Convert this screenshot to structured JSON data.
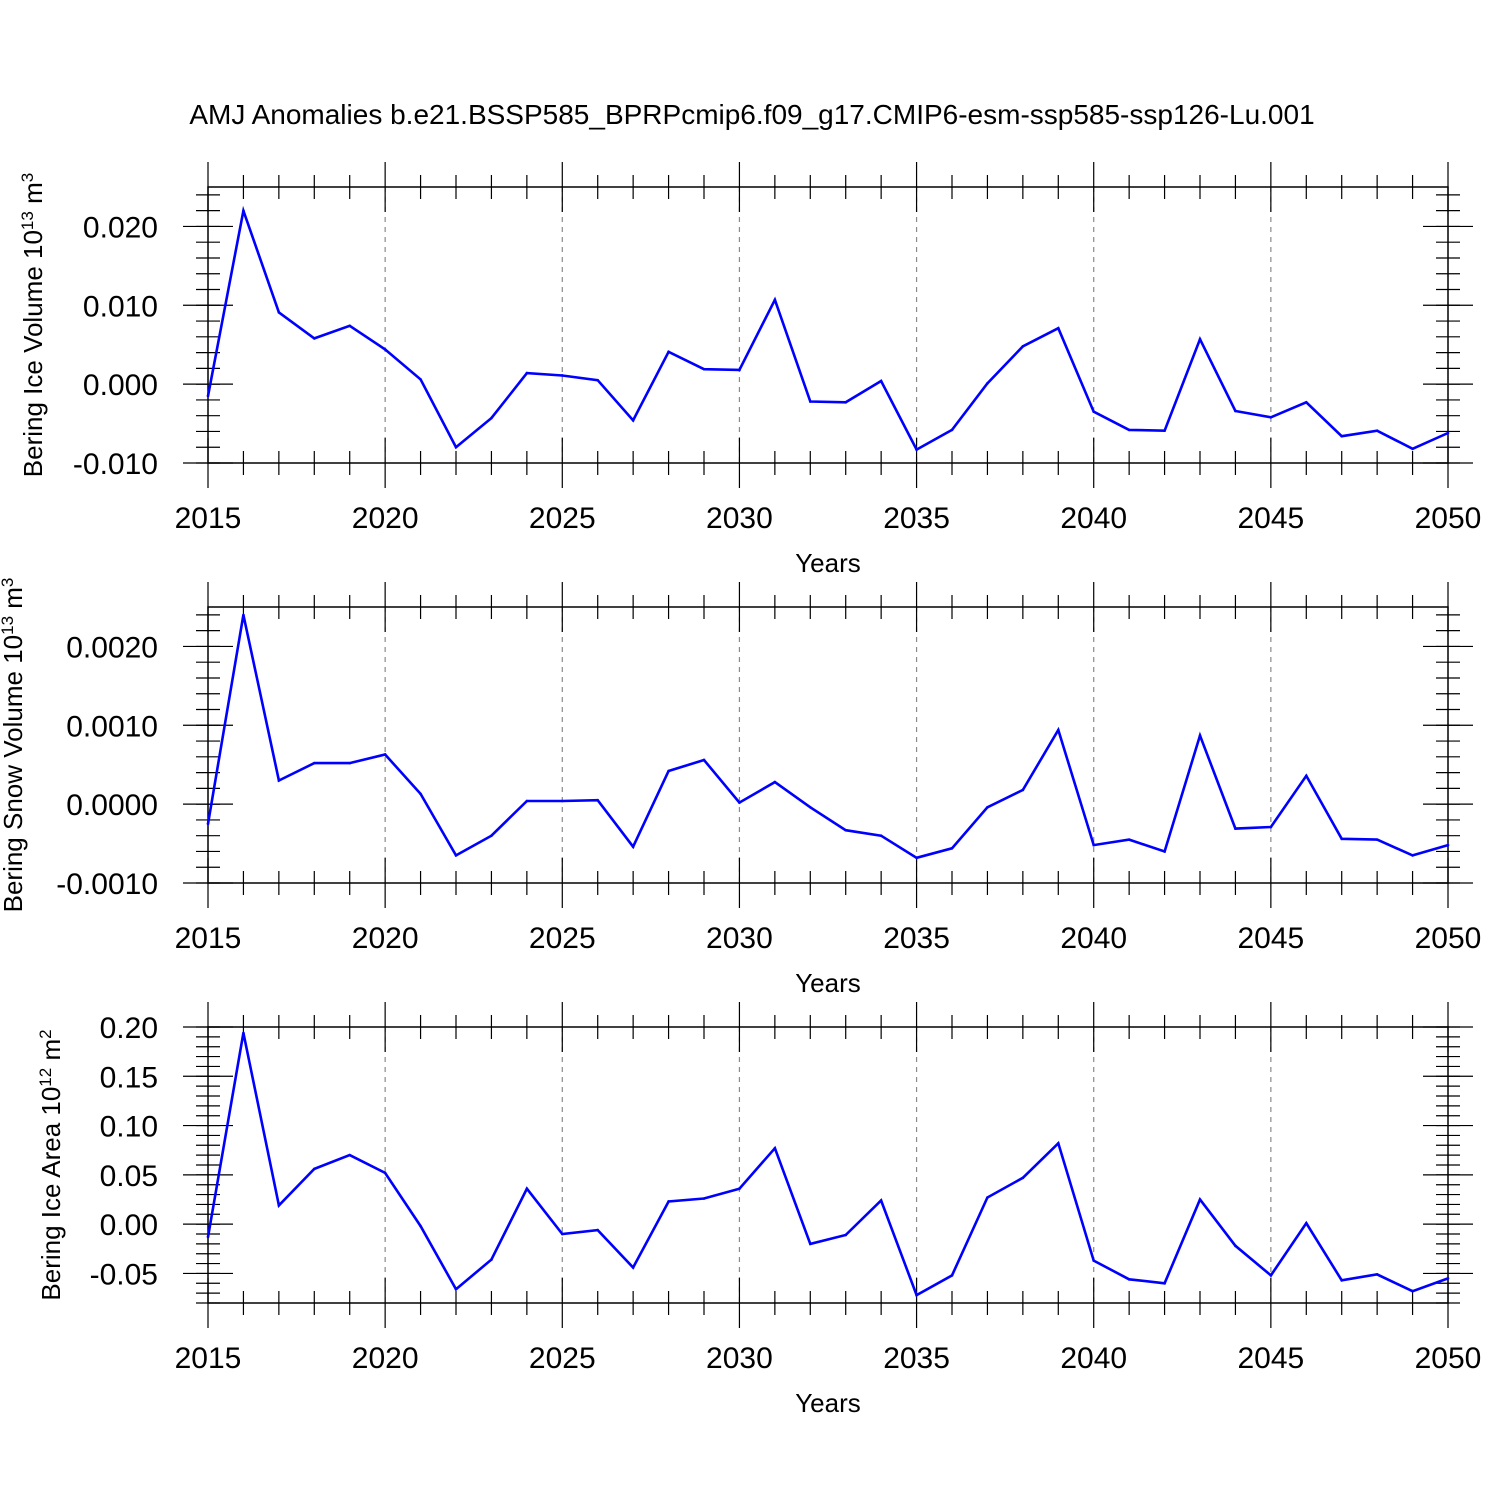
{
  "title": "AMJ Anomalies b.e21.BSSP585_BPRPcmip6.f09_g17.CMIP6-esm-ssp585-ssp126-Lu.001",
  "line_color": "#0000ff",
  "chart_data": [
    {
      "type": "line",
      "xlabel": "Years",
      "ylabel": {
        "text": "Bering Ice Volume 10",
        "exp": "13",
        "unit": "m",
        "unit_exp": "3"
      },
      "xlim": [
        2015,
        2050
      ],
      "ylim": [
        -0.01,
        0.025
      ],
      "xticks": [
        2015,
        2020,
        2025,
        2030,
        2035,
        2040,
        2045,
        2050
      ],
      "xtick_labels": [
        "2015",
        "2020",
        "2025",
        "2030",
        "2035",
        "2040",
        "2045",
        "2050"
      ],
      "yticks": [
        -0.01,
        0.0,
        0.01,
        0.02
      ],
      "ytick_labels": [
        "-0.010",
        "0.000",
        "0.010",
        "0.020"
      ],
      "y_minor_step": 0.002,
      "grid": "x-dashed",
      "x": [
        2015,
        2016,
        2017,
        2018,
        2019,
        2020,
        2021,
        2022,
        2023,
        2024,
        2025,
        2026,
        2027,
        2028,
        2029,
        2030,
        2031,
        2032,
        2033,
        2034,
        2035,
        2036,
        2037,
        2038,
        2039,
        2040,
        2041,
        2042,
        2043,
        2044,
        2045,
        2046,
        2047,
        2048,
        2049,
        2050
      ],
      "series": [
        {
          "values": [
            -0.0015,
            0.022,
            0.0091,
            0.0058,
            0.0074,
            0.0044,
            0.0006,
            -0.008,
            -0.0043,
            0.0014,
            0.0011,
            0.0005,
            -0.0046,
            0.0041,
            0.0019,
            0.0018,
            0.0107,
            -0.0022,
            -0.0023,
            0.0004,
            -0.0083,
            -0.0058,
            0.0001,
            0.0048,
            0.0071,
            -0.0035,
            -0.0058,
            -0.0059,
            0.0057,
            -0.0034,
            -0.0042,
            -0.0023,
            -0.0066,
            -0.0059,
            -0.0082,
            -0.0062
          ]
        }
      ]
    },
    {
      "type": "line",
      "xlabel": "Years",
      "ylabel": {
        "text": "Bering Snow Volume 10",
        "exp": "13",
        "unit": "m",
        "unit_exp": "3"
      },
      "xlim": [
        2015,
        2050
      ],
      "ylim": [
        -0.001,
        0.0025
      ],
      "xticks": [
        2015,
        2020,
        2025,
        2030,
        2035,
        2040,
        2045,
        2050
      ],
      "xtick_labels": [
        "2015",
        "2020",
        "2025",
        "2030",
        "2035",
        "2040",
        "2045",
        "2050"
      ],
      "yticks": [
        -0.001,
        0.0,
        0.001,
        0.002
      ],
      "ytick_labels": [
        "-0.0010",
        "0.0000",
        "0.0010",
        "0.0020"
      ],
      "y_minor_step": 0.0002,
      "grid": "x-dashed",
      "x": [
        2015,
        2016,
        2017,
        2018,
        2019,
        2020,
        2021,
        2022,
        2023,
        2024,
        2025,
        2026,
        2027,
        2028,
        2029,
        2030,
        2031,
        2032,
        2033,
        2034,
        2035,
        2036,
        2037,
        2038,
        2039,
        2040,
        2041,
        2042,
        2043,
        2044,
        2045,
        2046,
        2047,
        2048,
        2049,
        2050
      ],
      "series": [
        {
          "values": [
            -0.00025,
            0.0024,
            0.0003,
            0.00052,
            0.00052,
            0.00063,
            0.00013,
            -0.00065,
            -0.0004,
            4e-05,
            4e-05,
            5e-05,
            -0.00054,
            0.00042,
            0.00056,
            2e-05,
            0.00028,
            -4e-05,
            -0.00033,
            -0.0004,
            -0.00068,
            -0.00056,
            -4e-05,
            0.00018,
            0.00094,
            -0.00052,
            -0.00045,
            -0.0006,
            0.00087,
            -0.00031,
            -0.00029,
            0.00036,
            -0.00044,
            -0.00045,
            -0.00065,
            -0.00052
          ]
        }
      ]
    },
    {
      "type": "line",
      "xlabel": "Years",
      "ylabel": {
        "text": "Bering Ice Area 10",
        "exp": "12",
        "unit": "m",
        "unit_exp": "2"
      },
      "xlim": [
        2015,
        2050
      ],
      "ylim": [
        -0.08,
        0.2
      ],
      "xticks": [
        2015,
        2020,
        2025,
        2030,
        2035,
        2040,
        2045,
        2050
      ],
      "xtick_labels": [
        "2015",
        "2020",
        "2025",
        "2030",
        "2035",
        "2040",
        "2045",
        "2050"
      ],
      "yticks": [
        -0.05,
        0.0,
        0.05,
        0.1,
        0.15,
        0.2
      ],
      "ytick_labels": [
        "-0.05",
        "0.00",
        "0.05",
        "0.10",
        "0.15",
        "0.20"
      ],
      "y_minor_step": 0.01,
      "grid": "x-dashed",
      "x": [
        2015,
        2016,
        2017,
        2018,
        2019,
        2020,
        2021,
        2022,
        2023,
        2024,
        2025,
        2026,
        2027,
        2028,
        2029,
        2030,
        2031,
        2032,
        2033,
        2034,
        2035,
        2036,
        2037,
        2038,
        2039,
        2040,
        2041,
        2042,
        2043,
        2044,
        2045,
        2046,
        2047,
        2048,
        2049,
        2050
      ],
      "series": [
        {
          "values": [
            -0.013,
            0.194,
            0.019,
            0.056,
            0.07,
            0.052,
            -0.002,
            -0.066,
            -0.036,
            0.036,
            -0.01,
            -0.006,
            -0.044,
            0.023,
            0.026,
            0.036,
            0.077,
            -0.02,
            -0.011,
            0.024,
            -0.072,
            -0.052,
            0.027,
            0.047,
            0.082,
            -0.037,
            -0.056,
            -0.06,
            0.025,
            -0.022,
            -0.052,
            0.001,
            -0.057,
            -0.051,
            -0.068,
            -0.055
          ]
        }
      ]
    }
  ]
}
